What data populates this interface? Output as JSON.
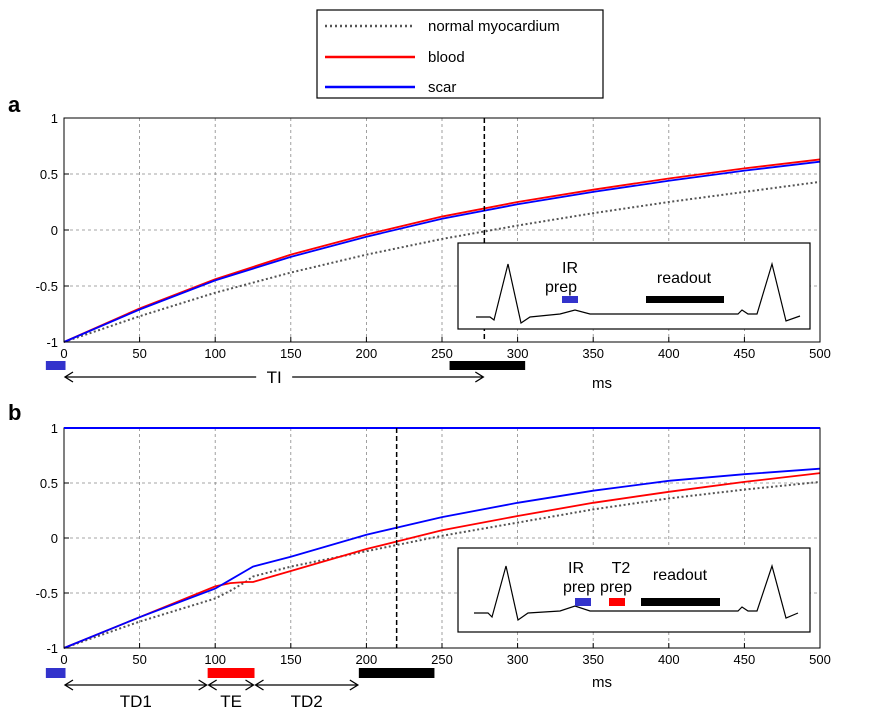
{
  "legend": {
    "placement": "top-center",
    "entries": [
      {
        "label": "normal myocardium",
        "color": "#555555",
        "style": "dotted"
      },
      {
        "label": "blood",
        "color": "#ff0000",
        "style": "solid"
      },
      {
        "label": "scar",
        "color": "#0000ff",
        "style": "solid"
      }
    ]
  },
  "chart_data": [
    {
      "panel_label": "a",
      "type": "line",
      "xlim": [
        0,
        500
      ],
      "ylim": [
        -1,
        1
      ],
      "xticks": [
        "0",
        "50",
        "100",
        "150",
        "200",
        "250",
        "300",
        "350",
        "400",
        "450",
        "500"
      ],
      "yticks": [
        "-1",
        "-0.5",
        "0",
        "0.5",
        "1"
      ],
      "xunit": "ms",
      "grid": true,
      "marker_x": 278,
      "x": [
        0,
        50,
        100,
        150,
        200,
        250,
        300,
        350,
        400,
        450,
        500
      ],
      "series": [
        {
          "name": "normal myocardium",
          "color": "#555555",
          "style": "dotted",
          "values": [
            -1,
            -0.77,
            -0.56,
            -0.38,
            -0.22,
            -0.08,
            0.04,
            0.15,
            0.25,
            0.34,
            0.43
          ]
        },
        {
          "name": "blood",
          "color": "#ff0000",
          "style": "solid",
          "values": [
            -1,
            -0.7,
            -0.44,
            -0.22,
            -0.04,
            0.12,
            0.25,
            0.36,
            0.46,
            0.55,
            0.63
          ]
        },
        {
          "name": "scar",
          "color": "#0000ff",
          "style": "solid",
          "values": [
            -1,
            -0.71,
            -0.45,
            -0.24,
            -0.06,
            0.1,
            0.23,
            0.34,
            0.44,
            0.53,
            0.61
          ]
        }
      ],
      "timeline": {
        "bars": [
          {
            "name": "ir-pulse",
            "color": "#3333cc",
            "start": -12,
            "end": 1
          },
          {
            "name": "readout",
            "color": "#000000",
            "start": 255,
            "end": 305
          }
        ],
        "arrows": [
          {
            "label": "TI",
            "start": 0,
            "end": 278
          }
        ]
      },
      "inset": {
        "ir_label_1": "IR",
        "ir_label_2": "prep",
        "readout_label": "readout"
      }
    },
    {
      "panel_label": "b",
      "type": "line",
      "xlim": [
        0,
        500
      ],
      "ylim": [
        -1,
        1
      ],
      "xticks": [
        "0",
        "50",
        "100",
        "150",
        "200",
        "250",
        "300",
        "350",
        "400",
        "450",
        "500"
      ],
      "yticks": [
        "-1",
        "-0.5",
        "0",
        "0.5",
        "1"
      ],
      "xunit": "ms",
      "grid": true,
      "marker_x": 220,
      "x": [
        0,
        50,
        100,
        110,
        120,
        125,
        150,
        200,
        250,
        300,
        350,
        400,
        450,
        500
      ],
      "series": [
        {
          "name": "normal myocardium",
          "color": "#555555",
          "style": "dotted",
          "values": [
            -1,
            -0.76,
            -0.55,
            -0.48,
            -0.4,
            -0.35,
            -0.26,
            -0.12,
            0.02,
            0.14,
            0.26,
            0.36,
            0.44,
            0.51
          ]
        },
        {
          "name": "blood",
          "color": "#ff0000",
          "style": "solid",
          "values": [
            -1,
            -0.72,
            -0.44,
            -0.41,
            -0.4,
            -0.4,
            -0.3,
            -0.1,
            0.07,
            0.2,
            0.32,
            0.42,
            0.51,
            0.59
          ]
        },
        {
          "name": "scar",
          "color": "#0000ff",
          "style": "solid",
          "values": [
            -1,
            -0.72,
            -0.46,
            -0.38,
            -0.3,
            -0.26,
            -0.17,
            0.03,
            0.19,
            0.32,
            0.43,
            0.52,
            0.58,
            0.63
          ]
        }
      ],
      "timeline": {
        "bars": [
          {
            "name": "ir-pulse",
            "color": "#3333cc",
            "start": -12,
            "end": 1
          },
          {
            "name": "t2-prep",
            "color": "#ff0000",
            "start": 95,
            "end": 126
          },
          {
            "name": "readout",
            "color": "#000000",
            "start": 195,
            "end": 245
          }
        ],
        "arrows": [
          {
            "label": "TD1",
            "start": 0,
            "end": 95
          },
          {
            "label": "TE",
            "start": 95,
            "end": 126
          },
          {
            "label": "TD2",
            "start": 126,
            "end": 195
          }
        ]
      },
      "inset": {
        "ir_label_1": "IR",
        "ir_label_2": "prep",
        "t2_label_1": "T2",
        "t2_label_2": "prep",
        "readout_label": "readout"
      }
    }
  ]
}
